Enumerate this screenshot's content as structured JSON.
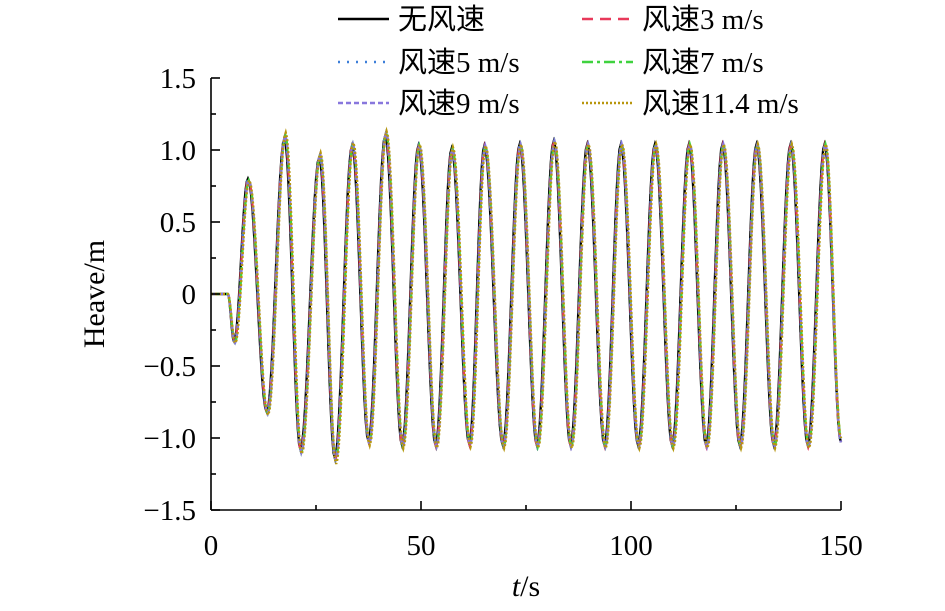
{
  "chart_data": {
    "type": "line",
    "xlabel_italic": "t",
    "xlabel_unit": "/s",
    "ylabel": "Heave/m",
    "xlim": [
      0,
      150
    ],
    "ylim": [
      -1.5,
      1.5
    ],
    "x_ticks": [
      0,
      50,
      100,
      150
    ],
    "x_tick_labels": [
      "0",
      "50",
      "100",
      "150"
    ],
    "y_ticks": [
      -1.5,
      -1.0,
      -0.5,
      0,
      0.5,
      1.0,
      1.5
    ],
    "y_tick_labels": [
      "−1.5",
      "−1.0",
      "−0.5",
      "0",
      "0.5",
      "1.0",
      "1.5"
    ],
    "grid": false,
    "legend_position": "top",
    "series": [
      {
        "name": "无风速",
        "color": "#000000",
        "dash": "solid",
        "peaks_x": [
          8.8,
          17.5,
          25.8,
          33.6,
          41.5,
          49.4,
          57.3,
          65.1,
          73.5,
          81.6,
          89.6,
          97.6,
          105.7,
          113.8,
          121.8,
          129.9,
          138.0,
          146.1
        ],
        "peaks_y": [
          0.8,
          1.08,
          0.95,
          1.03,
          1.1,
          1.03,
          1.01,
          1.03,
          1.04,
          1.06,
          1.04,
          1.04,
          1.04,
          1.04,
          1.04,
          1.04,
          1.04,
          1.04
        ],
        "troughs_x": [
          5.5,
          13.3,
          21.3,
          29.5,
          37.5,
          45.5,
          53.5,
          61.5,
          69.5,
          77.6,
          85.6,
          93.7,
          101.7,
          109.8,
          117.9,
          125.9,
          134.0,
          142.1
        ],
        "troughs_y": [
          -0.33,
          -0.82,
          -1.08,
          -1.14,
          -1.02,
          -1.05,
          -1.05,
          -1.04,
          -1.05,
          -1.05,
          -1.05,
          -1.05,
          -1.05,
          -1.05,
          -1.05,
          -1.05,
          -1.05,
          -1.05
        ],
        "start_x": 4.0,
        "end": [
          150,
          -1.03
        ]
      },
      {
        "name": "风速3 m/s",
        "color": "#e8395a",
        "dash": "11,7",
        "peaks_x": [
          8.9,
          17.6,
          25.9,
          33.7,
          41.6,
          49.5,
          57.4,
          65.2,
          73.6,
          81.7,
          89.7,
          97.7,
          105.8,
          113.9,
          121.9,
          130.0,
          138.1,
          146.2
        ],
        "peaks_y": [
          0.8,
          1.1,
          0.96,
          1.04,
          1.11,
          1.03,
          1.01,
          1.03,
          1.04,
          1.06,
          1.04,
          1.04,
          1.04,
          1.04,
          1.04,
          1.04,
          1.04,
          1.04
        ],
        "troughs_x": [
          5.6,
          13.4,
          21.4,
          29.6,
          37.6,
          45.6,
          53.6,
          61.6,
          69.6,
          77.7,
          85.7,
          93.8,
          101.8,
          109.9,
          118.0,
          126.0,
          134.1,
          142.2
        ],
        "troughs_y": [
          -0.33,
          -0.82,
          -1.09,
          -1.15,
          -1.03,
          -1.06,
          -1.06,
          -1.05,
          -1.06,
          -1.06,
          -1.06,
          -1.06,
          -1.06,
          -1.06,
          -1.06,
          -1.06,
          -1.06,
          -1.06
        ],
        "start_x": 4.0,
        "end": [
          150,
          -1.03
        ]
      },
      {
        "name": "风速5 m/s",
        "color": "#3d7fd9",
        "dash": "2,7",
        "peaks_x": [
          8.9,
          17.6,
          25.9,
          33.7,
          41.6,
          49.5,
          57.4,
          65.2,
          73.6,
          81.7,
          89.7,
          97.7,
          105.8,
          113.9,
          121.9,
          130.0,
          138.1,
          146.2
        ],
        "peaks_y": [
          0.8,
          1.1,
          0.96,
          1.04,
          1.11,
          1.03,
          1.01,
          1.03,
          1.04,
          1.06,
          1.04,
          1.04,
          1.04,
          1.04,
          1.04,
          1.04,
          1.04,
          1.04
        ],
        "troughs_x": [
          5.6,
          13.4,
          21.4,
          29.6,
          37.6,
          45.6,
          53.6,
          61.6,
          69.6,
          77.7,
          85.7,
          93.8,
          101.8,
          109.9,
          118.0,
          126.0,
          134.1,
          142.2
        ],
        "troughs_y": [
          -0.33,
          -0.82,
          -1.09,
          -1.15,
          -1.03,
          -1.06,
          -1.06,
          -1.05,
          -1.06,
          -1.06,
          -1.06,
          -1.06,
          -1.06,
          -1.06,
          -1.06,
          -1.06,
          -1.06,
          -1.06
        ],
        "start_x": 4.0,
        "end": [
          150,
          -1.03
        ]
      },
      {
        "name": "风速7 m/s",
        "color": "#3fd23f",
        "dash": "11,4,3,4",
        "peaks_x": [
          9.0,
          17.7,
          26.0,
          33.8,
          41.7,
          49.6,
          57.5,
          65.3,
          73.7,
          81.8,
          89.8,
          97.8,
          105.9,
          114.0,
          122.0,
          130.1,
          138.2,
          146.3
        ],
        "peaks_y": [
          0.79,
          1.1,
          0.97,
          1.04,
          1.12,
          1.03,
          1.01,
          1.03,
          1.04,
          1.06,
          1.04,
          1.04,
          1.04,
          1.04,
          1.04,
          1.04,
          1.04,
          1.04
        ],
        "troughs_x": [
          5.7,
          13.5,
          21.5,
          29.7,
          37.7,
          45.7,
          53.7,
          61.7,
          69.7,
          77.8,
          85.8,
          93.9,
          101.9,
          110.0,
          118.1,
          126.1,
          134.2,
          142.3
        ],
        "troughs_y": [
          -0.34,
          -0.83,
          -1.1,
          -1.16,
          -1.04,
          -1.06,
          -1.06,
          -1.05,
          -1.06,
          -1.06,
          -1.06,
          -1.06,
          -1.06,
          -1.06,
          -1.06,
          -1.06,
          -1.06,
          -1.06
        ],
        "start_x": 4.0,
        "end": [
          150,
          -1.0
        ]
      },
      {
        "name": "风速9 m/s",
        "color": "#8877dd",
        "dash": "5,3",
        "peaks_x": [
          9.0,
          17.7,
          26.0,
          33.8,
          41.7,
          49.6,
          57.5,
          65.3,
          73.7,
          81.8,
          89.8,
          97.8,
          105.9,
          114.0,
          122.0,
          130.1,
          138.2,
          146.3
        ],
        "peaks_y": [
          0.79,
          1.1,
          0.97,
          1.04,
          1.12,
          1.03,
          1.01,
          1.03,
          1.04,
          1.06,
          1.04,
          1.04,
          1.04,
          1.04,
          1.04,
          1.04,
          1.04,
          1.04
        ],
        "troughs_x": [
          5.7,
          13.5,
          21.5,
          29.7,
          37.7,
          45.7,
          53.7,
          61.7,
          69.7,
          77.8,
          85.8,
          93.9,
          101.9,
          110.0,
          118.1,
          126.1,
          134.2,
          142.3
        ],
        "troughs_y": [
          -0.34,
          -0.83,
          -1.1,
          -1.16,
          -1.04,
          -1.06,
          -1.06,
          -1.05,
          -1.06,
          -1.06,
          -1.06,
          -1.06,
          -1.06,
          -1.06,
          -1.06,
          -1.06,
          -1.06,
          -1.06
        ],
        "start_x": 4.0,
        "end": [
          150,
          -1.03
        ]
      },
      {
        "name": "风速11.4 m/s",
        "color": "#b8960c",
        "dash": "2,2",
        "peaks_x": [
          9.1,
          17.8,
          26.1,
          33.9,
          41.8,
          49.7,
          57.6,
          65.4,
          73.8,
          81.9,
          89.9,
          97.9,
          106.0,
          114.1,
          122.1,
          130.2,
          138.3,
          146.4
        ],
        "peaks_y": [
          0.79,
          1.12,
          0.98,
          1.05,
          1.13,
          1.04,
          1.02,
          1.03,
          1.04,
          1.06,
          1.04,
          1.04,
          1.04,
          1.04,
          1.04,
          1.04,
          1.04,
          1.04
        ],
        "troughs_x": [
          5.8,
          13.6,
          21.6,
          29.8,
          37.8,
          45.8,
          53.8,
          61.8,
          69.8,
          77.9,
          85.9,
          94.0,
          102.0,
          110.1,
          118.2,
          126.2,
          134.3,
          142.4
        ],
        "troughs_y": [
          -0.34,
          -0.84,
          -1.11,
          -1.18,
          -1.05,
          -1.07,
          -1.07,
          -1.06,
          -1.07,
          -1.07,
          -1.07,
          -1.07,
          -1.07,
          -1.07,
          -1.07,
          -1.07,
          -1.07,
          -1.07
        ],
        "start_x": 4.0,
        "end": [
          150,
          -1.0
        ]
      }
    ]
  }
}
